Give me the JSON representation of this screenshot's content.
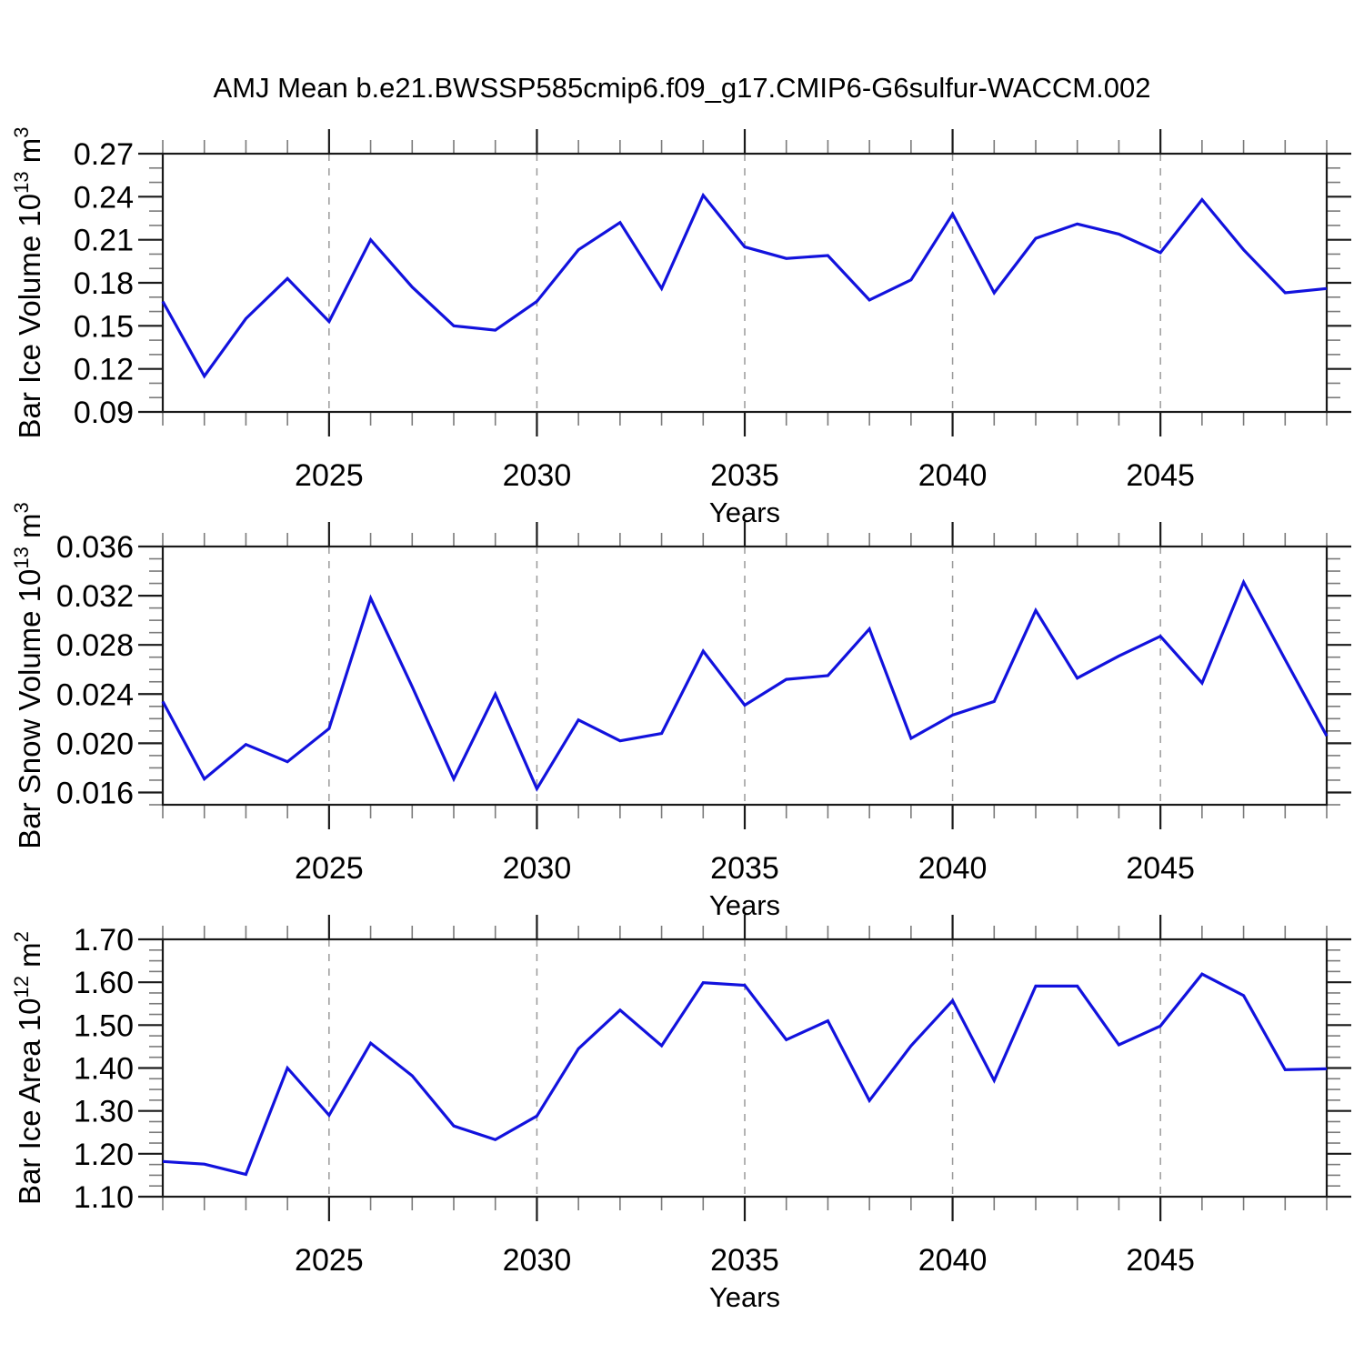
{
  "title": "AMJ Mean b.e21.BWSSP585cmip6.f09_g17.CMIP6-G6sulfur-WACCM.002",
  "line_color": "#1212dd",
  "grid_color": "#9a9a9a",
  "frame_color": "#1a1a1a",
  "minor_tick_color": "#7a7a7a",
  "x_axis": {
    "label": "Years",
    "range": [
      2021,
      2049
    ],
    "major_ticks": [
      2025,
      2030,
      2035,
      2040,
      2045
    ],
    "major_tick_labels": [
      "2025",
      "2030",
      "2035",
      "2040",
      "2045"
    ],
    "minor_step": 1
  },
  "chart_data": [
    {
      "type": "line",
      "name": "bar-ice-volume",
      "ylabel": "Bar Ice Volume 10^13 m^3",
      "ylabel_parts": [
        {
          "t": "Bar Ice Volume 10"
        },
        {
          "t": "13",
          "sup": true
        },
        {
          "t": " m"
        },
        {
          "t": "3",
          "sup": true
        }
      ],
      "xlabel": "Years",
      "ylim": [
        0.09,
        0.27
      ],
      "yticks": [
        {
          "v": 0.27,
          "label": "0.27"
        },
        {
          "v": 0.24,
          "label": "0.24"
        },
        {
          "v": 0.21,
          "label": "0.21"
        },
        {
          "v": 0.18,
          "label": "0.18"
        },
        {
          "v": 0.15,
          "label": "0.15"
        },
        {
          "v": 0.12,
          "label": "0.12"
        },
        {
          "v": 0.09,
          "label": "0.09"
        }
      ],
      "ytick_minor_step": 0.01,
      "x": [
        2021,
        2022,
        2023,
        2024,
        2025,
        2026,
        2027,
        2028,
        2029,
        2030,
        2031,
        2032,
        2033,
        2034,
        2035,
        2036,
        2037,
        2038,
        2039,
        2040,
        2041,
        2042,
        2043,
        2044,
        2045,
        2046,
        2047,
        2048,
        2049
      ],
      "values": [
        0.167,
        0.115,
        0.155,
        0.183,
        0.153,
        0.21,
        0.177,
        0.15,
        0.147,
        0.167,
        0.203,
        0.222,
        0.176,
        0.241,
        0.205,
        0.197,
        0.199,
        0.168,
        0.182,
        0.228,
        0.173,
        0.211,
        0.221,
        0.214,
        0.201,
        0.238,
        0.203,
        0.173,
        0.176
      ]
    },
    {
      "type": "line",
      "name": "bar-snow-volume",
      "ylabel": "Bar Snow Volume 10^13 m^3",
      "ylabel_parts": [
        {
          "t": "Bar Snow Volume 10"
        },
        {
          "t": "13",
          "sup": true
        },
        {
          "t": " m"
        },
        {
          "t": "3",
          "sup": true
        }
      ],
      "xlabel": "Years",
      "ylim": [
        0.015,
        0.036
      ],
      "yticks": [
        {
          "v": 0.036,
          "label": "0.036"
        },
        {
          "v": 0.032,
          "label": "0.032"
        },
        {
          "v": 0.028,
          "label": "0.028"
        },
        {
          "v": 0.024,
          "label": "0.024"
        },
        {
          "v": 0.02,
          "label": "0.020"
        },
        {
          "v": 0.016,
          "label": "0.016"
        }
      ],
      "ytick_minor_step": 0.001,
      "x": [
        2021,
        2022,
        2023,
        2024,
        2025,
        2026,
        2027,
        2028,
        2029,
        2030,
        2031,
        2032,
        2033,
        2034,
        2035,
        2036,
        2037,
        2038,
        2039,
        2040,
        2041,
        2042,
        2043,
        2044,
        2045,
        2046,
        2047,
        2048,
        2049
      ],
      "values": [
        0.0234,
        0.0171,
        0.0199,
        0.0185,
        0.0212,
        0.0318,
        0.0246,
        0.0171,
        0.024,
        0.0163,
        0.0219,
        0.0202,
        0.0208,
        0.0275,
        0.0231,
        0.0252,
        0.0255,
        0.0293,
        0.0204,
        0.0223,
        0.0234,
        0.0308,
        0.0253,
        0.0271,
        0.0287,
        0.0249,
        0.0331,
        0.0268,
        0.0206
      ]
    },
    {
      "type": "line",
      "name": "bar-ice-area",
      "ylabel": "Bar Ice Area 10^12 m^2",
      "ylabel_parts": [
        {
          "t": "Bar Ice Area 10"
        },
        {
          "t": "12",
          "sup": true
        },
        {
          "t": " m"
        },
        {
          "t": "2",
          "sup": true
        }
      ],
      "xlabel": "Years",
      "ylim": [
        1.1,
        1.7
      ],
      "yticks": [
        {
          "v": 1.7,
          "label": "1.70"
        },
        {
          "v": 1.6,
          "label": "1.60"
        },
        {
          "v": 1.5,
          "label": "1.50"
        },
        {
          "v": 1.4,
          "label": "1.40"
        },
        {
          "v": 1.3,
          "label": "1.30"
        },
        {
          "v": 1.2,
          "label": "1.20"
        },
        {
          "v": 1.1,
          "label": "1.10"
        }
      ],
      "ytick_minor_step": 0.025,
      "x": [
        2021,
        2022,
        2023,
        2024,
        2025,
        2026,
        2027,
        2028,
        2029,
        2030,
        2031,
        2032,
        2033,
        2034,
        2035,
        2036,
        2037,
        2038,
        2039,
        2040,
        2041,
        2042,
        2043,
        2044,
        2045,
        2046,
        2047,
        2048,
        2049
      ],
      "values": [
        1.182,
        1.176,
        1.152,
        1.4,
        1.29,
        1.458,
        1.382,
        1.265,
        1.233,
        1.288,
        1.445,
        1.535,
        1.452,
        1.599,
        1.593,
        1.466,
        1.51,
        1.324,
        1.452,
        1.557,
        1.371,
        1.591,
        1.591,
        1.454,
        1.498,
        1.619,
        1.569,
        1.396,
        1.398
      ]
    }
  ]
}
